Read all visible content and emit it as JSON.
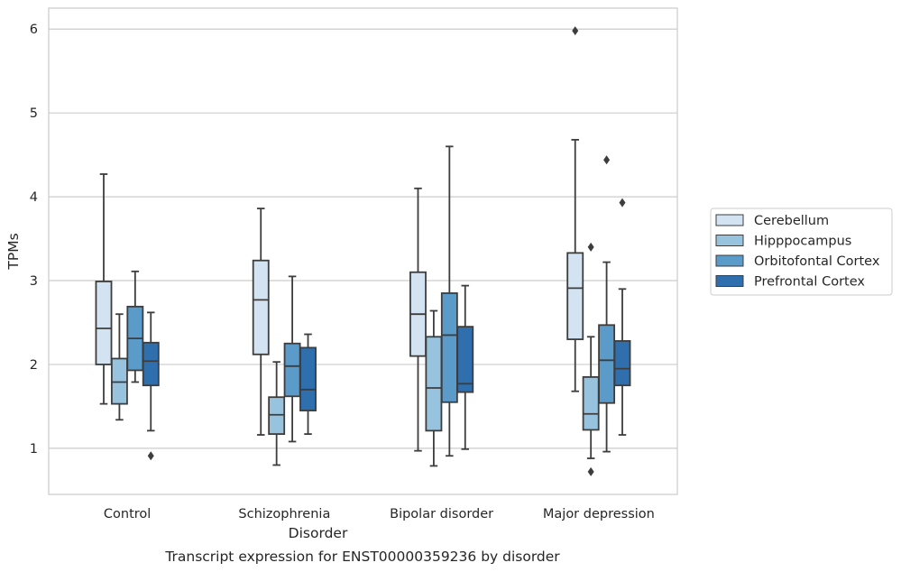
{
  "chart_data": {
    "type": "boxplot",
    "title": "Transcript expression for ENST00000359236 by disorder",
    "xlabel": "Disorder",
    "ylabel": "TPMs",
    "ylim": [
      0.45,
      6.25
    ],
    "yticks": [
      1,
      2,
      3,
      4,
      5,
      6
    ],
    "grid": "horizontal",
    "legend_position": "right",
    "categories": [
      "Control",
      "Schizophrenia",
      "Bipolar disorder",
      "Major depression"
    ],
    "series": [
      {
        "name": "Cerebellum",
        "color": "#d3e3f2",
        "boxes": [
          {
            "whislo": 1.53,
            "q1": 2.0,
            "med": 2.43,
            "q3": 2.99,
            "whishi": 4.27,
            "fliers": []
          },
          {
            "whislo": 1.16,
            "q1": 2.12,
            "med": 2.77,
            "q3": 3.24,
            "whishi": 3.86,
            "fliers": []
          },
          {
            "whislo": 0.97,
            "q1": 2.1,
            "med": 2.6,
            "q3": 3.1,
            "whishi": 4.1,
            "fliers": []
          },
          {
            "whislo": 1.68,
            "q1": 2.3,
            "med": 2.91,
            "q3": 3.33,
            "whishi": 4.68,
            "fliers": [
              5.98
            ]
          }
        ]
      },
      {
        "name": "Hipppocampus",
        "color": "#97c3df",
        "boxes": [
          {
            "whislo": 1.34,
            "q1": 1.53,
            "med": 1.79,
            "q3": 2.07,
            "whishi": 2.6,
            "fliers": []
          },
          {
            "whislo": 0.8,
            "q1": 1.17,
            "med": 1.4,
            "q3": 1.61,
            "whishi": 2.03,
            "fliers": []
          },
          {
            "whislo": 0.79,
            "q1": 1.21,
            "med": 1.72,
            "q3": 2.33,
            "whishi": 2.64,
            "fliers": []
          },
          {
            "whislo": 0.88,
            "q1": 1.22,
            "med": 1.41,
            "q3": 1.85,
            "whishi": 2.33,
            "fliers": [
              0.72,
              3.4
            ]
          }
        ]
      },
      {
        "name": "Orbitofontal Cortex",
        "color": "#5b9bc9",
        "boxes": [
          {
            "whislo": 1.79,
            "q1": 1.93,
            "med": 2.31,
            "q3": 2.69,
            "whishi": 3.11,
            "fliers": []
          },
          {
            "whislo": 1.08,
            "q1": 1.62,
            "med": 1.98,
            "q3": 2.25,
            "whishi": 3.05,
            "fliers": []
          },
          {
            "whislo": 0.91,
            "q1": 1.55,
            "med": 2.35,
            "q3": 2.85,
            "whishi": 4.6,
            "fliers": []
          },
          {
            "whislo": 0.96,
            "q1": 1.54,
            "med": 2.05,
            "q3": 2.47,
            "whishi": 3.22,
            "fliers": [
              4.44
            ]
          }
        ]
      },
      {
        "name": "Prefrontal Cortex",
        "color": "#2f6fae",
        "boxes": [
          {
            "whislo": 1.21,
            "q1": 1.75,
            "med": 2.04,
            "q3": 2.26,
            "whishi": 2.62,
            "fliers": [
              0.91
            ]
          },
          {
            "whislo": 1.17,
            "q1": 1.45,
            "med": 1.7,
            "q3": 2.2,
            "whishi": 2.36,
            "fliers": []
          },
          {
            "whislo": 0.99,
            "q1": 1.67,
            "med": 1.77,
            "q3": 2.45,
            "whishi": 2.94,
            "fliers": []
          },
          {
            "whislo": 1.16,
            "q1": 1.75,
            "med": 1.95,
            "q3": 2.28,
            "whishi": 2.9,
            "fliers": [
              3.93
            ]
          }
        ]
      }
    ]
  }
}
